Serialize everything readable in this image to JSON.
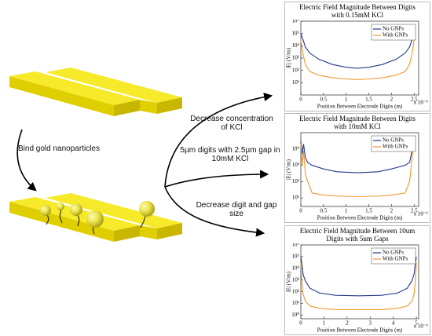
{
  "diagram": {
    "step_label": "Bind gold nanoparticles",
    "arrow_labels": [
      "Decrease concentration of KCl",
      "5µm digits with 2.5µm gap in 10mM KCl",
      "Decrease digit and gap size"
    ]
  },
  "chart_data": [
    {
      "type": "line",
      "title": "Electric Field Magnitude Between Digits with 0.15mM KCl",
      "x_label": "Position Between Electrode Digits (m)",
      "x_exponent_label": "x 10⁻⁶",
      "y_label": "|E| (V/m)",
      "log_y": true,
      "legend": "top-right",
      "x": [
        0,
        0.05,
        0.1,
        0.2,
        0.4,
        0.7,
        1.0,
        1.25,
        1.5,
        1.8,
        2.1,
        2.3,
        2.4,
        2.45,
        2.5
      ],
      "series": [
        {
          "name": "No GNPs",
          "color": "#1f3a8a",
          "values": [
            100000,
            30000,
            8000,
            2500,
            800,
            300,
            180,
            150,
            180,
            300,
            800,
            2500,
            8000,
            30000,
            100000
          ]
        },
        {
          "name": "With GNPs",
          "color": "#f0962e",
          "values": [
            30000,
            2000,
            300,
            80,
            40,
            25,
            20,
            18,
            20,
            25,
            40,
            80,
            300,
            2000,
            30000
          ]
        }
      ],
      "xlim": [
        0,
        2.6
      ],
      "xticks": [
        0,
        0.5,
        1,
        1.5,
        2,
        2.5
      ],
      "ylim": [
        1,
        1000000
      ],
      "yticks": [
        {
          "value": 10,
          "label": "10¹"
        },
        {
          "value": 100,
          "label": "10²"
        },
        {
          "value": 1000,
          "label": "10³"
        },
        {
          "value": 10000,
          "label": "10⁴"
        },
        {
          "value": 100000,
          "label": "10⁵"
        },
        {
          "value": 1000000,
          "label": "10⁶"
        }
      ]
    },
    {
      "type": "line",
      "title": "Electric Field Magnitude Between Digits with 10mM KCl",
      "x_label": "Position Between Electrode Digits (m)",
      "x_exponent_label": "x 10⁻⁶",
      "y_label": "|E| (V/m)",
      "log_y": true,
      "legend": "top-right",
      "x": [
        0,
        0.03,
        0.06,
        0.1,
        0.15,
        0.25,
        0.5,
        0.8,
        1.25,
        1.7,
        2.0,
        2.3,
        2.4,
        2.44,
        2.47,
        2.5
      ],
      "series": [
        {
          "name": "No GNPs",
          "color": "#1f3a8a",
          "values": [
            30000,
            5000,
            20000,
            3000,
            1500,
            1000,
            600,
            400,
            350,
            400,
            600,
            1000,
            1500,
            5000,
            20000,
            30000
          ]
        },
        {
          "name": "With GNPs",
          "color": "#f0962e",
          "values": [
            20000,
            1000,
            8000,
            300,
            100,
            20,
            15,
            13,
            12,
            13,
            15,
            20,
            100,
            1000,
            8000,
            20000
          ]
        }
      ],
      "xlim": [
        0,
        2.6
      ],
      "xticks": [
        0,
        0.5,
        1,
        1.5,
        2,
        2.5
      ],
      "ylim": [
        3,
        100000
      ],
      "yticks": [
        {
          "value": 10,
          "label": "10¹"
        },
        {
          "value": 100,
          "label": "10²"
        },
        {
          "value": 1000,
          "label": "10³"
        },
        {
          "value": 10000,
          "label": "10⁴"
        }
      ]
    },
    {
      "type": "line",
      "title": "Electric Field Magnitude Between 10um Digits with 5um Gaps",
      "x_label": "Position Between Electrode Digits (m)",
      "x_exponent_label": "x 10⁻⁶",
      "y_label": "|E| (V/m)",
      "log_y": true,
      "legend": "top-right",
      "x": [
        0,
        0.05,
        0.1,
        0.2,
        0.4,
        0.8,
        1.5,
        2.5,
        3.5,
        4.2,
        4.6,
        4.8,
        4.9,
        4.95,
        5
      ],
      "series": [
        {
          "name": "No GNPs",
          "color": "#1f3a8a",
          "values": [
            100000,
            20000,
            3000,
            800,
            200,
            80,
            50,
            45,
            50,
            80,
            200,
            800,
            3000,
            20000,
            100000
          ]
        },
        {
          "name": "With GNPs",
          "color": "#f0962e",
          "values": [
            30000,
            500,
            60,
            15,
            6,
            4,
            3,
            3,
            3,
            4,
            6,
            15,
            60,
            500,
            30000
          ]
        }
      ],
      "xlim": [
        0,
        5.1
      ],
      "xticks": [
        0,
        1,
        2,
        3,
        4,
        5
      ],
      "ylim": [
        0.5,
        1000000
      ],
      "yticks": [
        {
          "value": 1,
          "label": "10⁰"
        },
        {
          "value": 10,
          "label": "10¹"
        },
        {
          "value": 100,
          "label": "10²"
        },
        {
          "value": 1000,
          "label": "10³"
        },
        {
          "value": 10000,
          "label": "10⁴"
        },
        {
          "value": 100000,
          "label": "10⁵"
        },
        {
          "value": 1000000,
          "label": "10⁶"
        }
      ]
    }
  ]
}
